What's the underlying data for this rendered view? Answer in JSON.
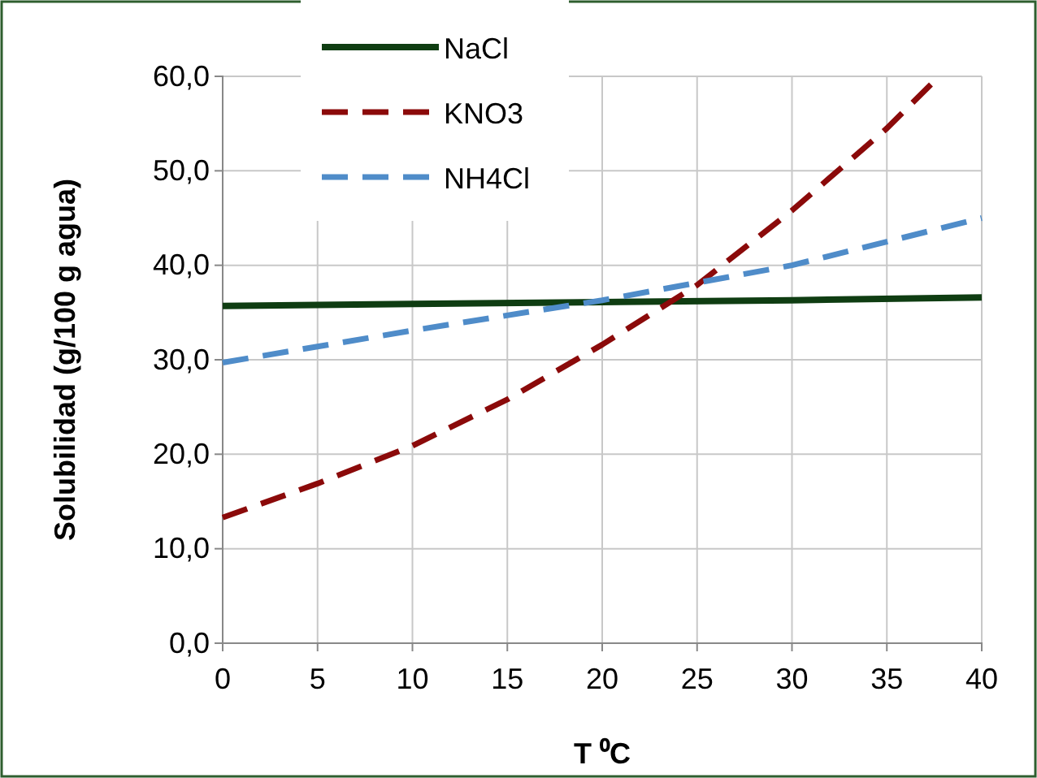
{
  "chart_data": {
    "type": "line",
    "xlabel": "T ⁰C",
    "ylabel": "Solubilidad (g/100 g agua)",
    "xlim": [
      0,
      40
    ],
    "xticks": [
      0,
      5,
      10,
      15,
      20,
      25,
      30,
      35,
      40
    ],
    "ylim": [
      0,
      60
    ],
    "yticks": [
      {
        "value": 0,
        "label": "0,0"
      },
      {
        "value": 10,
        "label": "10,0"
      },
      {
        "value": 20,
        "label": "20,0"
      },
      {
        "value": 30,
        "label": "30,0"
      },
      {
        "value": 40,
        "label": "40,0"
      },
      {
        "value": 50,
        "label": "50,0"
      },
      {
        "value": 60,
        "label": "60,0"
      }
    ],
    "grid": true,
    "legend": "top",
    "marker": "none",
    "series": [
      {
        "name": "NaCl",
        "color": "#0f3d12",
        "line_style": "solid",
        "x": [
          0,
          10,
          20,
          30,
          40
        ],
        "values": [
          35.7,
          35.9,
          36.1,
          36.3,
          36.6
        ]
      },
      {
        "name": "KNO3",
        "color": "#8b0a0a",
        "line_style": "dashed",
        "x": [
          0,
          5,
          10,
          15,
          20,
          25,
          30,
          35,
          37.5
        ],
        "values": [
          13.3,
          16.9,
          20.9,
          25.8,
          31.6,
          37.9,
          45.8,
          54.5,
          59.5
        ]
      },
      {
        "name": "NH4Cl",
        "color": "#4f8cc9",
        "line_style": "dashed",
        "x": [
          0,
          10,
          20,
          30,
          40
        ],
        "values": [
          29.7,
          33.1,
          36.3,
          40.0,
          45.0
        ]
      }
    ]
  }
}
